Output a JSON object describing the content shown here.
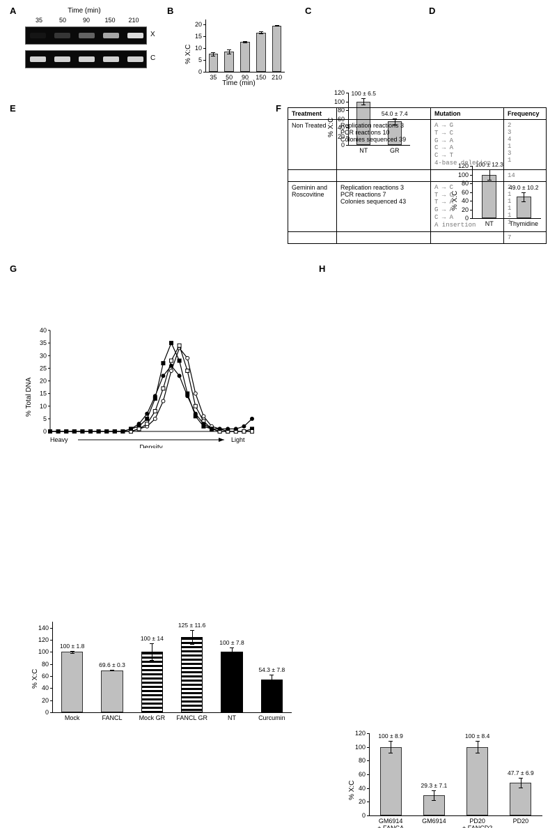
{
  "panelA": {
    "label": "A",
    "title": "Time (min)",
    "lanes": [
      "35",
      "50",
      "90",
      "150",
      "210"
    ],
    "rowX": {
      "label": "X",
      "intensities": [
        0.05,
        0.2,
        0.4,
        0.7,
        0.95
      ]
    },
    "rowC": {
      "label": "C",
      "intensities": [
        0.9,
        0.9,
        0.9,
        0.9,
        0.9
      ]
    },
    "band_color": "#e8e8e8"
  },
  "panelB": {
    "label": "B",
    "y_title": "% X:C",
    "x_title": "Time (min)",
    "categories": [
      "35",
      "50",
      "90",
      "150",
      "210"
    ],
    "values": [
      7.5,
      8.5,
      12.5,
      16.5,
      19.5
    ],
    "errors": [
      0.8,
      0.9,
      0.3,
      0.4,
      0.2
    ],
    "ylim": [
      0,
      22
    ],
    "ytick_step": 5,
    "bar_color": "#bfbfbf"
  },
  "panelC": {
    "label": "C",
    "y_title": "% X:C",
    "categories": [
      "NT",
      "GR"
    ],
    "values": [
      100,
      54.0
    ],
    "errors": [
      6.5,
      7.4
    ],
    "value_labels": [
      "100 ± 6.5",
      "54.0 ± 7.4"
    ],
    "ylim": [
      0,
      120
    ],
    "ytick_step": 20,
    "bar_color": "#bfbfbf"
  },
  "panelD": {
    "label": "D",
    "y_title": "% X:C",
    "categories": [
      "NT",
      "Thymidine"
    ],
    "values": [
      100,
      49.0
    ],
    "errors": [
      12.3,
      10.2
    ],
    "value_labels": [
      "100 ± 12.3",
      "49.0 ± 10.2"
    ],
    "ylim": [
      0,
      120
    ],
    "ytick_step": 20,
    "bar_color": "#bfbfbf"
  },
  "panelE": {
    "label": "E",
    "y_title": "% Total DNA",
    "x_axis": {
      "left": "Heavy",
      "right": "Light",
      "title": "Density"
    },
    "ylim": [
      0,
      40
    ],
    "ytick_step": 5,
    "x_count": 26,
    "series": [
      {
        "name": "open-circle",
        "marker": "circle",
        "fill": "#ffffff",
        "stroke": "#000",
        "values": [
          0,
          0,
          0,
          0,
          0,
          0,
          0,
          0,
          0,
          0,
          0,
          1,
          2,
          5,
          12,
          24,
          33,
          29,
          15,
          6,
          2,
          1,
          0,
          0,
          0,
          0
        ]
      },
      {
        "name": "closed-square",
        "marker": "square",
        "fill": "#000",
        "stroke": "#000",
        "values": [
          0,
          0,
          0,
          0,
          0,
          0,
          0,
          0,
          0,
          0,
          1,
          2,
          5,
          13,
          27,
          35,
          28,
          15,
          6,
          2,
          1,
          0,
          0,
          0,
          0,
          1
        ]
      },
      {
        "name": "open-square",
        "marker": "square",
        "fill": "#ffffff",
        "stroke": "#000",
        "values": [
          0,
          0,
          0,
          0,
          0,
          0,
          0,
          0,
          0,
          0,
          0,
          1,
          3,
          8,
          17,
          28,
          34,
          24,
          10,
          4,
          1,
          0,
          0,
          0,
          0,
          0
        ]
      },
      {
        "name": "closed-circle",
        "marker": "circle",
        "fill": "#000",
        "stroke": "#000",
        "values": [
          0,
          0,
          0,
          0,
          0,
          0,
          0,
          0,
          0,
          0,
          1,
          3,
          7,
          14,
          22,
          26,
          22,
          14,
          7,
          3,
          1,
          1,
          1,
          1,
          2,
          5
        ]
      }
    ]
  },
  "panelF": {
    "label": "F",
    "headers": [
      "Treatment",
      "",
      "Mutation",
      "Frequency"
    ],
    "rows": [
      {
        "treatment": "Non Treated",
        "details": [
          "Replication reactions 3",
          "PCR reactions 10",
          "Colonies sequenced 39"
        ],
        "mutations": [
          "A → G",
          "T → C",
          "G → A",
          "C → A",
          "C → T",
          "4-base deletion"
        ],
        "freqs": [
          "2",
          "3",
          "4",
          "1",
          "3",
          "1"
        ],
        "total": "14"
      },
      {
        "treatment": "Geminin and Roscovitine",
        "details": [
          "Replication reactions 3",
          "PCR reactions 7",
          "Colonies sequenced 43"
        ],
        "mutations": [
          "A → C",
          "T → C",
          "T → A",
          "G → A",
          "C → A",
          "A insertion"
        ],
        "freqs": [
          "2",
          "1",
          "1",
          "1",
          "1",
          "1"
        ],
        "total": "7"
      }
    ]
  },
  "panelG": {
    "label": "G",
    "y_title": "% X:C",
    "categories": [
      "Mock",
      "FANCL",
      "Mock GR",
      "FANCL GR",
      "NT",
      "Curcumin"
    ],
    "values": [
      100,
      69.6,
      100,
      125,
      100,
      54.3
    ],
    "errors": [
      1.8,
      0.3,
      14,
      11.6,
      7.8,
      7.8
    ],
    "value_labels": [
      "100 ± 1.8",
      "69.6 ± 0.3",
      "100 ± 14",
      "125 ± 11.6",
      "100 ± 7.8",
      "54.3 ± 7.8"
    ],
    "bar_styles": [
      "gray",
      "gray",
      "stripe",
      "stripe",
      "black",
      "black"
    ],
    "ylim": [
      0,
      150
    ],
    "ytick_step": 20
  },
  "panelH": {
    "label": "H",
    "y_title": "% X:C",
    "categories": [
      "GM6914\n+ FANCA",
      "GM6914",
      "PD20\n+ FANCD2",
      "PD20"
    ],
    "values": [
      100,
      29.3,
      100,
      47.7
    ],
    "errors": [
      8.9,
      7.1,
      8.4,
      6.9
    ],
    "value_labels": [
      "100 ± 8.9",
      "29.3 ± 7.1",
      "100 ± 8.4",
      "47.7 ± 6.9"
    ],
    "ylim": [
      0,
      120
    ],
    "ytick_step": 20,
    "bar_color": "#bfbfbf"
  },
  "colors": {
    "bar_gray": "#bfbfbf",
    "axis": "#000000",
    "bg": "#ffffff",
    "mono": "#777777"
  }
}
